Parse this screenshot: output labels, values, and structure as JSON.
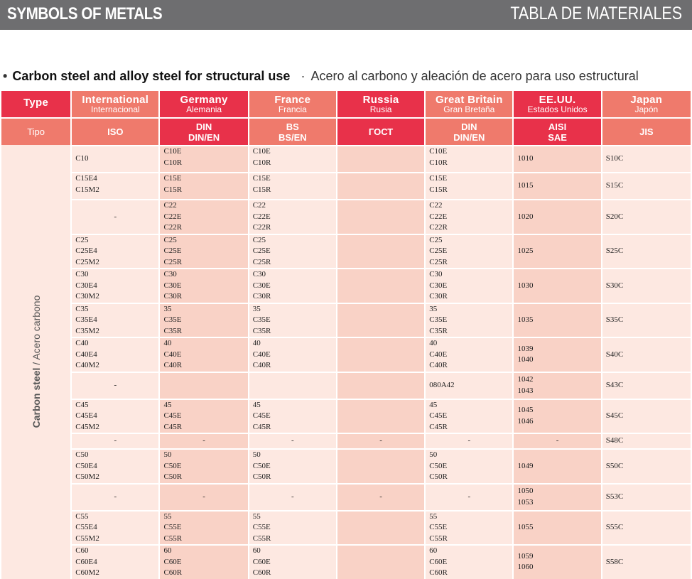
{
  "header": {
    "left_title": "SYMBOLS OF METALS",
    "right_title": "TABLA DE MATERIALES"
  },
  "section": {
    "bullet": "•",
    "title_en": "Carbon steel and alloy steel for structural use",
    "separator": "·",
    "title_es": "Acero al carbono y aleación de acero para uso estructural"
  },
  "table": {
    "type_label": "Type",
    "tipo_label": "Tipo",
    "type_vertical_en": "Carbon steel",
    "type_vertical_sep": " / ",
    "type_vertical_es": "Acero carbono",
    "columns": [
      {
        "en": "International",
        "es": "Internacional",
        "standard": [
          "ISO"
        ]
      },
      {
        "en": "Germany",
        "es": "Alemania",
        "standard": [
          "DIN",
          "DIN/EN"
        ]
      },
      {
        "en": "France",
        "es": "Francia",
        "standard": [
          "BS",
          "BS/EN"
        ]
      },
      {
        "en": "Russia",
        "es": "Rusia",
        "standard": [
          "ГОСТ"
        ]
      },
      {
        "en": "Great Britain",
        "es": "Gran Bretaña",
        "standard": [
          "DIN",
          "DIN/EN"
        ]
      },
      {
        "en": "EE.UU.",
        "es": "Estados Unidos",
        "standard": [
          "AISI",
          "SAE"
        ]
      },
      {
        "en": "Japan",
        "es": "Japón",
        "standard": [
          "JIS"
        ]
      }
    ],
    "rows": [
      {
        "cells": [
          [
            "C10"
          ],
          [
            "C10E",
            "C10R"
          ],
          [
            "C10E",
            "C10R"
          ],
          [],
          [
            "C10E",
            "C10R"
          ],
          [
            "1010"
          ],
          [
            "S10C"
          ]
        ]
      },
      {
        "cells": [
          [
            "C15E4",
            "C15M2"
          ],
          [
            "C15E",
            "C15R"
          ],
          [
            "C15E",
            "C15R"
          ],
          [],
          [
            "C15E",
            "C15R"
          ],
          [
            "1015"
          ],
          [
            "S15C"
          ]
        ]
      },
      {
        "cells": [
          [
            "-"
          ],
          [
            "C22",
            "C22E",
            "C22R"
          ],
          [
            "C22",
            "C22E",
            "C22R"
          ],
          [],
          [
            "C22",
            "C22E",
            "C22R"
          ],
          [
            "1020"
          ],
          [
            "S20C"
          ]
        ]
      },
      {
        "cells": [
          [
            "C25",
            "C25E4",
            "C25M2"
          ],
          [
            "C25",
            "C25E",
            "C25R"
          ],
          [
            "C25",
            "C25E",
            "C25R"
          ],
          [],
          [
            "C25",
            "C25E",
            "C25R"
          ],
          [
            "1025"
          ],
          [
            "S25C"
          ]
        ]
      },
      {
        "cells": [
          [
            "C30",
            "C30E4",
            "C30M2"
          ],
          [
            "C30",
            "C30E",
            "C30R"
          ],
          [
            "C30",
            "C30E",
            "C30R"
          ],
          [],
          [
            "C30",
            "C30E",
            "C30R"
          ],
          [
            "1030"
          ],
          [
            "S30C"
          ]
        ]
      },
      {
        "cells": [
          [
            "C35",
            "C35E4",
            "C35M2"
          ],
          [
            "35",
            "C35E",
            "C35R"
          ],
          [
            "35",
            "C35E",
            "C35R"
          ],
          [],
          [
            "35",
            "C35E",
            "C35R"
          ],
          [
            "1035"
          ],
          [
            "S35C"
          ]
        ]
      },
      {
        "cells": [
          [
            "C40",
            "C40E4",
            "C40M2"
          ],
          [
            "40",
            "C40E",
            "C40R"
          ],
          [
            "40",
            "C40E",
            "C40R"
          ],
          [],
          [
            "40",
            "C40E",
            "C40R"
          ],
          [
            "1039",
            "1040"
          ],
          [
            "S40C"
          ]
        ]
      },
      {
        "cells": [
          [
            "-"
          ],
          [],
          [],
          [],
          [
            "080A42"
          ],
          [
            "1042",
            "1043"
          ],
          [
            "S43C"
          ]
        ]
      },
      {
        "cells": [
          [
            "C45",
            "C45E4",
            "C45M2"
          ],
          [
            "45",
            "C45E",
            "C45R"
          ],
          [
            "45",
            "C45E",
            "C45R"
          ],
          [],
          [
            "45",
            "C45E",
            "C45R"
          ],
          [
            "1045",
            "1046"
          ],
          [
            "S45C"
          ]
        ]
      },
      {
        "cells": [
          [
            "-"
          ],
          [
            "-"
          ],
          [
            "-"
          ],
          [
            "-"
          ],
          [
            "-"
          ],
          [
            "-"
          ],
          [
            "S48C"
          ]
        ]
      },
      {
        "cells": [
          [
            "C50",
            "C50E4",
            "C50M2"
          ],
          [
            "50",
            "C50E",
            "C50R"
          ],
          [
            "50",
            "C50E",
            "C50R"
          ],
          [],
          [
            "50",
            "C50E",
            "C50R"
          ],
          [
            "1049"
          ],
          [
            "S50C"
          ]
        ]
      },
      {
        "cells": [
          [
            "-"
          ],
          [
            "-"
          ],
          [
            "-"
          ],
          [
            "-"
          ],
          [
            "-"
          ],
          [
            "1050",
            "1053"
          ],
          [
            "S53C"
          ]
        ]
      },
      {
        "cells": [
          [
            "C55",
            "C55E4",
            "C55M2"
          ],
          [
            "55",
            "C55E",
            "C55R"
          ],
          [
            "55",
            "C55E",
            "C55R"
          ],
          [],
          [
            "55",
            "C55E",
            "C55R"
          ],
          [
            "1055"
          ],
          [
            "S55C"
          ]
        ]
      },
      {
        "cells": [
          [
            "C60",
            "C60E4",
            "C60M2"
          ],
          [
            "60",
            "C60E",
            "C60R"
          ],
          [
            "60",
            "C60E",
            "C60R"
          ],
          [],
          [
            "60",
            "C60E",
            "C60R"
          ],
          [
            "1059",
            "1060"
          ],
          [
            "S58C"
          ]
        ]
      }
    ]
  }
}
